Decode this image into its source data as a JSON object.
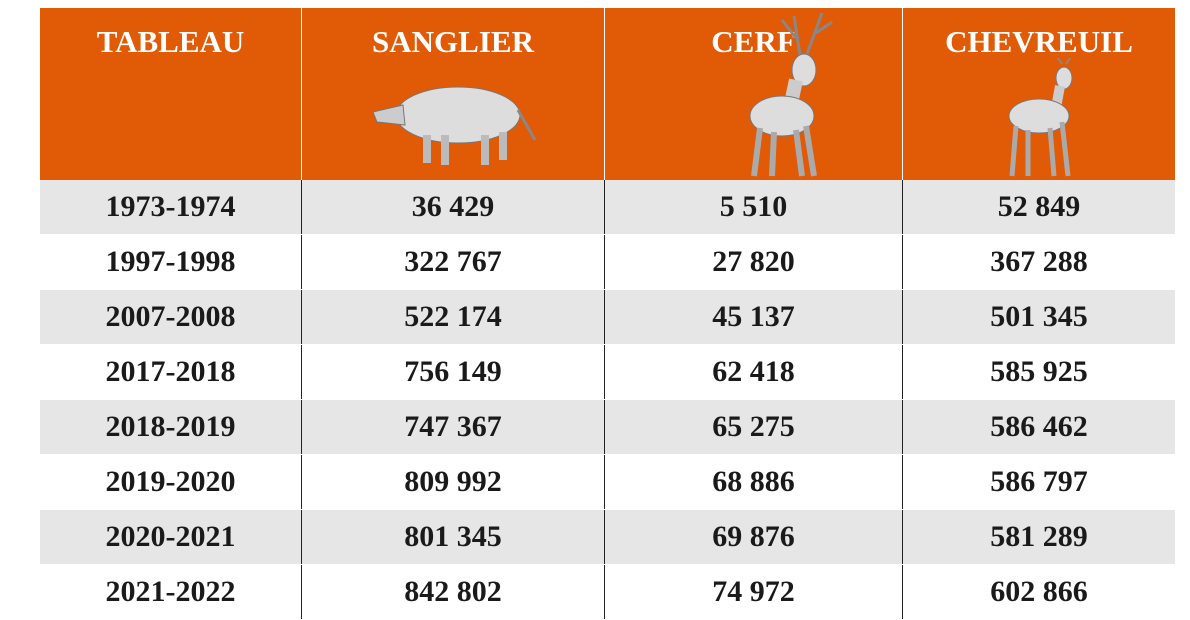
{
  "table": {
    "header": [
      "TABLEAU",
      "SANGLIER",
      "CERF",
      "CHEVREUIL"
    ],
    "rows": [
      [
        "1973-1974",
        "36 429",
        "5 510",
        "52 849"
      ],
      [
        "1997-1998",
        "322 767",
        "27 820",
        "367 288"
      ],
      [
        "2007-2008",
        "522 174",
        "45 137",
        "501 345"
      ],
      [
        "2017-2018",
        "756 149",
        "62 418",
        "585 925"
      ],
      [
        "2018-2019",
        "747 367",
        "65 275",
        "586 462"
      ],
      [
        "2019-2020",
        "809 992",
        "68 886",
        "586 797"
      ],
      [
        "2020-2021",
        "801 345",
        "69 876",
        "581 289"
      ],
      [
        "2021-2022",
        "842 802",
        "74 972",
        "602 866"
      ]
    ]
  }
}
